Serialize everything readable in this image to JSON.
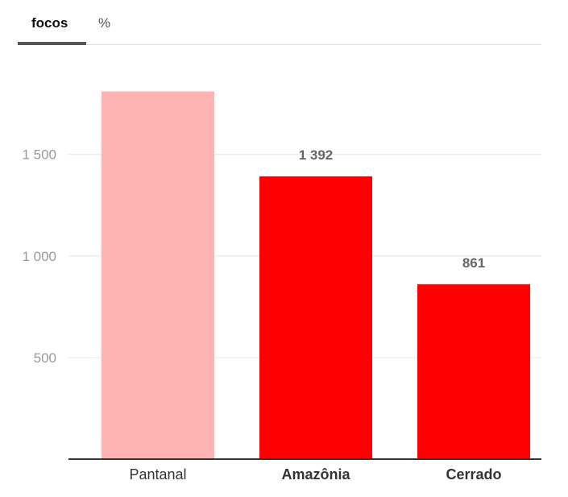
{
  "tabs": [
    {
      "label": "focos",
      "active": true
    },
    {
      "label": "%",
      "active": false
    }
  ],
  "colors": {
    "highlight_bar": "#ffb3b3",
    "bar": "#ff0000",
    "axis_text": "#999999",
    "category_text": "#333333",
    "data_label": "#666666",
    "grid": "#e6e6e6",
    "baseline": "#333333"
  },
  "chart_data": {
    "type": "bar",
    "categories": [
      "Pantanal",
      "Amazônia",
      "Cerrado"
    ],
    "values": [
      1810,
      1392,
      861
    ],
    "data_labels": [
      "",
      "1 392",
      "861"
    ],
    "bold_categories": [
      false,
      true,
      true
    ],
    "highlight": [
      true,
      false,
      false
    ],
    "yticks": [
      500,
      1000,
      1500
    ],
    "ytick_labels": [
      "500",
      "1 000",
      "1 500"
    ],
    "ylim": [
      0,
      1800
    ],
    "grid": true,
    "title": "",
    "xlabel": "",
    "ylabel": ""
  }
}
